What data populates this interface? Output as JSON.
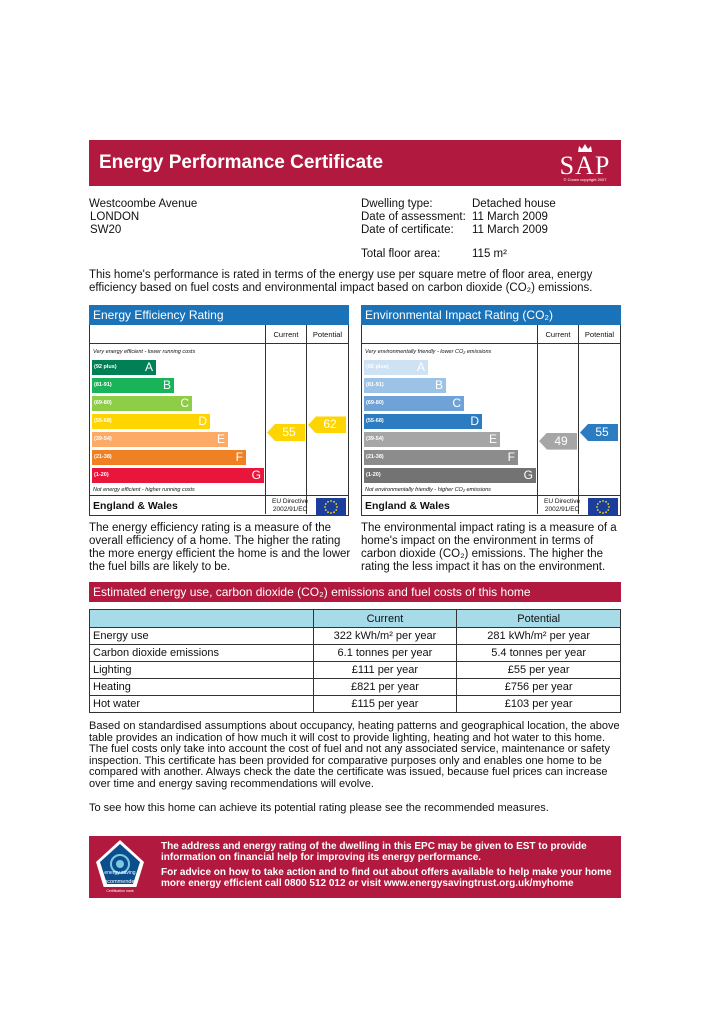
{
  "header": {
    "title": "Energy Performance Certificate",
    "logo_text": "SAP",
    "logo_copyright": "© Crown copyright 2007"
  },
  "address": [
    "Westcoombe Avenue",
    "LONDON",
    "SW20"
  ],
  "details": [
    {
      "label": "Dwelling type:",
      "value": "Detached house"
    },
    {
      "label": "Date of assessment:",
      "value": "11 March 2009"
    },
    {
      "label": "Date of certificate:",
      "value": "11 March 2009"
    },
    {
      "label": "Total floor area:",
      "value": "115 m²"
    }
  ],
  "intro": "This home's performance is rated in terms of the energy use per square metre of floor area, energy efficiency based on fuel costs and environmental impact based on carbon dioxide (CO₂) emissions.",
  "efficiency_panel": {
    "title": "Energy Efficiency Rating",
    "col_current": "Current",
    "col_potential": "Potential",
    "top_note": "Very energy efficient - lower running costs",
    "bottom_note": "Not energy efficient - higher running costs",
    "footer_label": "England & Wales",
    "eu_directive": "EU Directive\n2002/91/EC",
    "bands": [
      {
        "range": "(92 plus)",
        "letter": "A",
        "color": "#008054"
      },
      {
        "range": "(81-91)",
        "letter": "B",
        "color": "#19b459"
      },
      {
        "range": "(69-80)",
        "letter": "C",
        "color": "#8dce46"
      },
      {
        "range": "(55-68)",
        "letter": "D",
        "color": "#ffd500"
      },
      {
        "range": "(39-54)",
        "letter": "E",
        "color": "#fcaa65"
      },
      {
        "range": "(21-38)",
        "letter": "F",
        "color": "#ef8023"
      },
      {
        "range": "(1-20)",
        "letter": "G",
        "color": "#e9153b"
      }
    ],
    "current": 55,
    "potential": 62,
    "current_color": "#ffd500",
    "potential_color": "#ffd500"
  },
  "environment_panel": {
    "title": "Environmental Impact Rating (CO₂)",
    "col_current": "Current",
    "col_potential": "Potential",
    "top_note": "Very environmentally friendly - lower CO₂ emissions",
    "bottom_note": "Not environmentally friendly - higher CO₂ emissions",
    "footer_label": "England & Wales",
    "eu_directive": "EU Directive\n2002/91/EC",
    "bands": [
      {
        "range": "(92 plus)",
        "letter": "A",
        "color": "#cfe2f3"
      },
      {
        "range": "(81-91)",
        "letter": "B",
        "color": "#9cc3e6"
      },
      {
        "range": "(69-80)",
        "letter": "C",
        "color": "#6fa3d8"
      },
      {
        "range": "(55-68)",
        "letter": "D",
        "color": "#2b7cc0"
      },
      {
        "range": "(39-54)",
        "letter": "E",
        "color": "#a6a6a6"
      },
      {
        "range": "(21-38)",
        "letter": "F",
        "color": "#8c8c8c"
      },
      {
        "range": "(1-20)",
        "letter": "G",
        "color": "#737373"
      }
    ],
    "current": 49,
    "potential": 55,
    "current_color": "#a6a6a6",
    "potential_color": "#2b7cc0"
  },
  "efficiency_desc": "The energy efficiency rating is a measure of the overall efficiency of a home. The higher the rating the more energy efficient the home is and the lower the fuel bills are likely to be.",
  "environment_desc": "The environmental impact rating is a measure of a home's impact on the environment in terms of carbon dioxide (CO₂) emissions. The higher the rating the less impact it has on the environment.",
  "estimates": {
    "title": "Estimated energy use, carbon dioxide (CO₂) emissions and fuel costs of this home",
    "headers": [
      "",
      "Current",
      "Potential"
    ],
    "rows": [
      [
        "Energy use",
        "322 kWh/m² per year",
        "281 kWh/m² per year"
      ],
      [
        "Carbon dioxide emissions",
        "6.1 tonnes per year",
        "5.4 tonnes per year"
      ],
      [
        "Lighting",
        "£111 per year",
        "£55 per year"
      ],
      [
        "Heating",
        "£821 per year",
        "£756 per year"
      ],
      [
        "Hot water",
        "£115 per year",
        "£103 per year"
      ]
    ]
  },
  "assumptions": "Based on standardised assumptions about occupancy, heating patterns and geographical location, the above table provides an indication of how much it will cost to provide lighting, heating and hot water to this home. The fuel costs only take into account the cost of fuel and not any associated service, maintenance or safety inspection. This certificate has been provided for comparative purposes only and enables one home to be compared with another. Always check the date the certificate was issued, because fuel prices can increase over time and energy saving recommendations will evolve.",
  "recommend": "To see how this home can achieve its potential rating please see the recommended measures.",
  "est_box": {
    "para1": "The address and energy rating of the dwelling in this EPC may be given to EST to provide information on financial help for improving its energy performance.",
    "para2": "For advice on how to take action and to find out about offers available to help make your home more energy efficient call 0800 512 012 or visit www.energysavingtrust.org.uk/myhome",
    "logo_top": "energy saving",
    "logo_bottom": "recommended",
    "logo_caption": "Certification mark"
  }
}
